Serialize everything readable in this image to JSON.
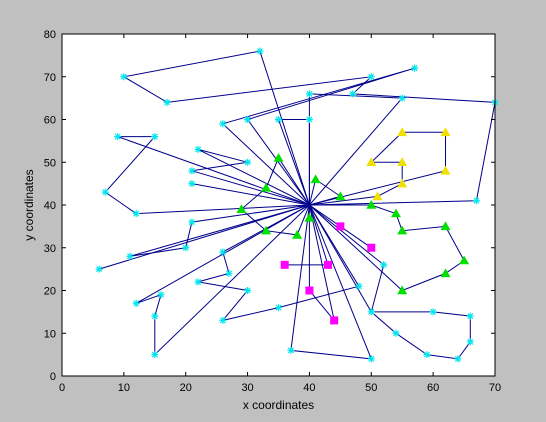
{
  "chart_data": {
    "type": "scatter",
    "title": "",
    "xlabel": "x coordinates",
    "ylabel": "y coordinates",
    "xlim": [
      0,
      70
    ],
    "ylim": [
      0,
      80
    ],
    "xticks": [
      "0",
      "10",
      "20",
      "30",
      "40",
      "50",
      "60",
      "70"
    ],
    "yticks": [
      "0",
      "10",
      "20",
      "30",
      "40",
      "50",
      "60",
      "70",
      "80"
    ],
    "grid": false,
    "hub": {
      "x": 40,
      "y": 40
    },
    "colors": {
      "background": "#c0c0c0",
      "plot_area": "#ffffff",
      "route_line": "#00008b",
      "cyan_marker": "#00e5ee",
      "green_marker": "#00e000",
      "yellow_marker": "#f0e000",
      "magenta_marker": "#ff00ff"
    },
    "series": [
      {
        "marker": "star",
        "color": "cyan",
        "points": [
          [
            32,
            76
          ],
          [
            10,
            70
          ],
          [
            17,
            64
          ],
          [
            9,
            56
          ],
          [
            15,
            56
          ],
          [
            7,
            43
          ],
          [
            12,
            38
          ],
          [
            26,
            59
          ],
          [
            30,
            60
          ],
          [
            35,
            60
          ],
          [
            40,
            60
          ],
          [
            40,
            66
          ],
          [
            50,
            70
          ],
          [
            57,
            72
          ],
          [
            47,
            66
          ],
          [
            55,
            65
          ],
          [
            70,
            64
          ],
          [
            22,
            53
          ],
          [
            21,
            48
          ],
          [
            30,
            50
          ],
          [
            21,
            45
          ],
          [
            67,
            41
          ],
          [
            21,
            36
          ],
          [
            20,
            30
          ],
          [
            11,
            28
          ],
          [
            6,
            25
          ],
          [
            26,
            29
          ],
          [
            27,
            24
          ],
          [
            22,
            22
          ],
          [
            30,
            20
          ],
          [
            26,
            13
          ],
          [
            35,
            16
          ],
          [
            48,
            21
          ],
          [
            52,
            26
          ],
          [
            12,
            17
          ],
          [
            16,
            19
          ],
          [
            15,
            14
          ],
          [
            15,
            5
          ],
          [
            37,
            6
          ],
          [
            50,
            4
          ],
          [
            59,
            5
          ],
          [
            64,
            4
          ],
          [
            66,
            8
          ],
          [
            66,
            14
          ],
          [
            50,
            15
          ],
          [
            54,
            10
          ],
          [
            60,
            15
          ]
        ]
      },
      {
        "marker": "triangle",
        "color": "green",
        "points": [
          [
            35,
            51
          ],
          [
            33,
            44
          ],
          [
            29,
            39
          ],
          [
            33,
            34
          ],
          [
            38,
            33
          ],
          [
            41,
            46
          ],
          [
            45,
            42
          ],
          [
            50,
            40
          ],
          [
            54,
            38
          ],
          [
            55,
            34
          ],
          [
            62,
            35
          ],
          [
            65,
            27
          ],
          [
            62,
            24
          ],
          [
            55,
            20
          ],
          [
            40,
            37
          ]
        ]
      },
      {
        "marker": "triangle",
        "color": "yellow",
        "points": [
          [
            55,
            57
          ],
          [
            62,
            57
          ],
          [
            62,
            48
          ],
          [
            55,
            50
          ],
          [
            50,
            50
          ],
          [
            55,
            45
          ],
          [
            51,
            42
          ]
        ]
      },
      {
        "marker": "square",
        "color": "magenta",
        "points": [
          [
            45,
            35
          ],
          [
            50,
            30
          ],
          [
            36,
            26
          ],
          [
            43,
            26
          ],
          [
            40,
            20
          ],
          [
            44,
            13
          ]
        ]
      }
    ],
    "routes": [
      [
        [
          40,
          40
        ],
        [
          32,
          76
        ],
        [
          10,
          70
        ],
        [
          17,
          64
        ],
        [
          50,
          70
        ],
        [
          47,
          66
        ],
        [
          70,
          64
        ],
        [
          67,
          41
        ],
        [
          40,
          40
        ]
      ],
      [
        [
          40,
          40
        ],
        [
          9,
          56
        ],
        [
          15,
          56
        ],
        [
          7,
          43
        ],
        [
          12,
          38
        ],
        [
          40,
          40
        ]
      ],
      [
        [
          40,
          40
        ],
        [
          26,
          59
        ],
        [
          57,
          72
        ],
        [
          30,
          60
        ],
        [
          40,
          40
        ]
      ],
      [
        [
          40,
          40
        ],
        [
          35,
          60
        ],
        [
          40,
          60
        ],
        [
          40,
          40
        ]
      ],
      [
        [
          40,
          40
        ],
        [
          40,
          66
        ],
        [
          55,
          65
        ],
        [
          40,
          40
        ]
      ],
      [
        [
          40,
          40
        ],
        [
          22,
          53
        ],
        [
          30,
          50
        ],
        [
          21,
          48
        ],
        [
          40,
          40
        ]
      ],
      [
        [
          40,
          40
        ],
        [
          21,
          45
        ],
        [
          40,
          40
        ]
      ],
      [
        [
          40,
          40
        ],
        [
          21,
          36
        ],
        [
          20,
          30
        ],
        [
          11,
          28
        ],
        [
          40,
          40
        ]
      ],
      [
        [
          40,
          40
        ],
        [
          6,
          25
        ],
        [
          40,
          40
        ]
      ],
      [
        [
          40,
          40
        ],
        [
          26,
          29
        ],
        [
          27,
          24
        ],
        [
          22,
          22
        ],
        [
          30,
          20
        ],
        [
          26,
          13
        ],
        [
          35,
          16
        ],
        [
          48,
          21
        ],
        [
          40,
          40
        ]
      ],
      [
        [
          40,
          40
        ],
        [
          52,
          26
        ],
        [
          50,
          15
        ],
        [
          54,
          10
        ],
        [
          59,
          5
        ],
        [
          64,
          4
        ],
        [
          66,
          8
        ],
        [
          66,
          14
        ],
        [
          60,
          15
        ],
        [
          50,
          15
        ],
        [
          40,
          40
        ]
      ],
      [
        [
          40,
          40
        ],
        [
          12,
          17
        ],
        [
          16,
          19
        ],
        [
          15,
          14
        ],
        [
          15,
          5
        ],
        [
          40,
          40
        ]
      ],
      [
        [
          40,
          40
        ],
        [
          37,
          6
        ],
        [
          50,
          4
        ],
        [
          40,
          40
        ]
      ],
      [
        [
          40,
          40
        ],
        [
          35,
          51
        ],
        [
          33,
          44
        ],
        [
          29,
          39
        ],
        [
          33,
          34
        ],
        [
          38,
          33
        ],
        [
          40,
          40
        ]
      ],
      [
        [
          40,
          40
        ],
        [
          41,
          46
        ],
        [
          45,
          42
        ],
        [
          40,
          40
        ]
      ],
      [
        [
          40,
          40
        ],
        [
          50,
          40
        ],
        [
          54,
          38
        ],
        [
          55,
          34
        ],
        [
          62,
          35
        ],
        [
          65,
          27
        ],
        [
          62,
          24
        ],
        [
          55,
          20
        ],
        [
          40,
          40
        ]
      ],
      [
        [
          40,
          40
        ],
        [
          51,
          42
        ],
        [
          55,
          45
        ],
        [
          55,
          50
        ],
        [
          50,
          50
        ],
        [
          55,
          57
        ],
        [
          62,
          57
        ],
        [
          62,
          48
        ],
        [
          40,
          40
        ]
      ],
      [
        [
          40,
          40
        ],
        [
          45,
          35
        ],
        [
          50,
          30
        ],
        [
          40,
          40
        ]
      ],
      [
        [
          36,
          26
        ],
        [
          43,
          26
        ],
        [
          40,
          40
        ]
      ],
      [
        [
          40,
          40
        ],
        [
          44,
          13
        ],
        [
          40,
          20
        ],
        [
          40,
          40
        ]
      ]
    ]
  }
}
